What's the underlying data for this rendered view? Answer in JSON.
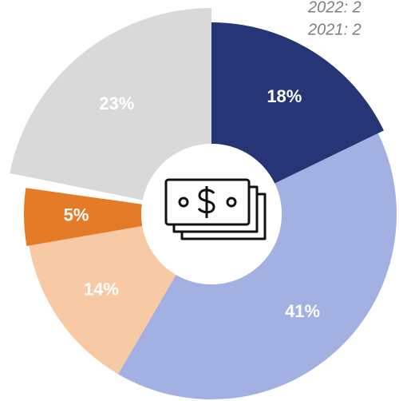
{
  "chart_data": {
    "type": "pie",
    "notes": [
      "2022: 2",
      "2021: 2"
    ],
    "categories": [
      null,
      null,
      null,
      null,
      null
    ],
    "values": [
      18,
      41,
      14,
      5,
      23
    ],
    "value_labels": [
      "18%",
      "41%",
      "14%",
      "5%",
      "23%"
    ],
    "colors": [
      "#253575",
      "#a3b0e2",
      "#f7c9a4",
      "#e57a27",
      "#d9d9d9"
    ]
  }
}
